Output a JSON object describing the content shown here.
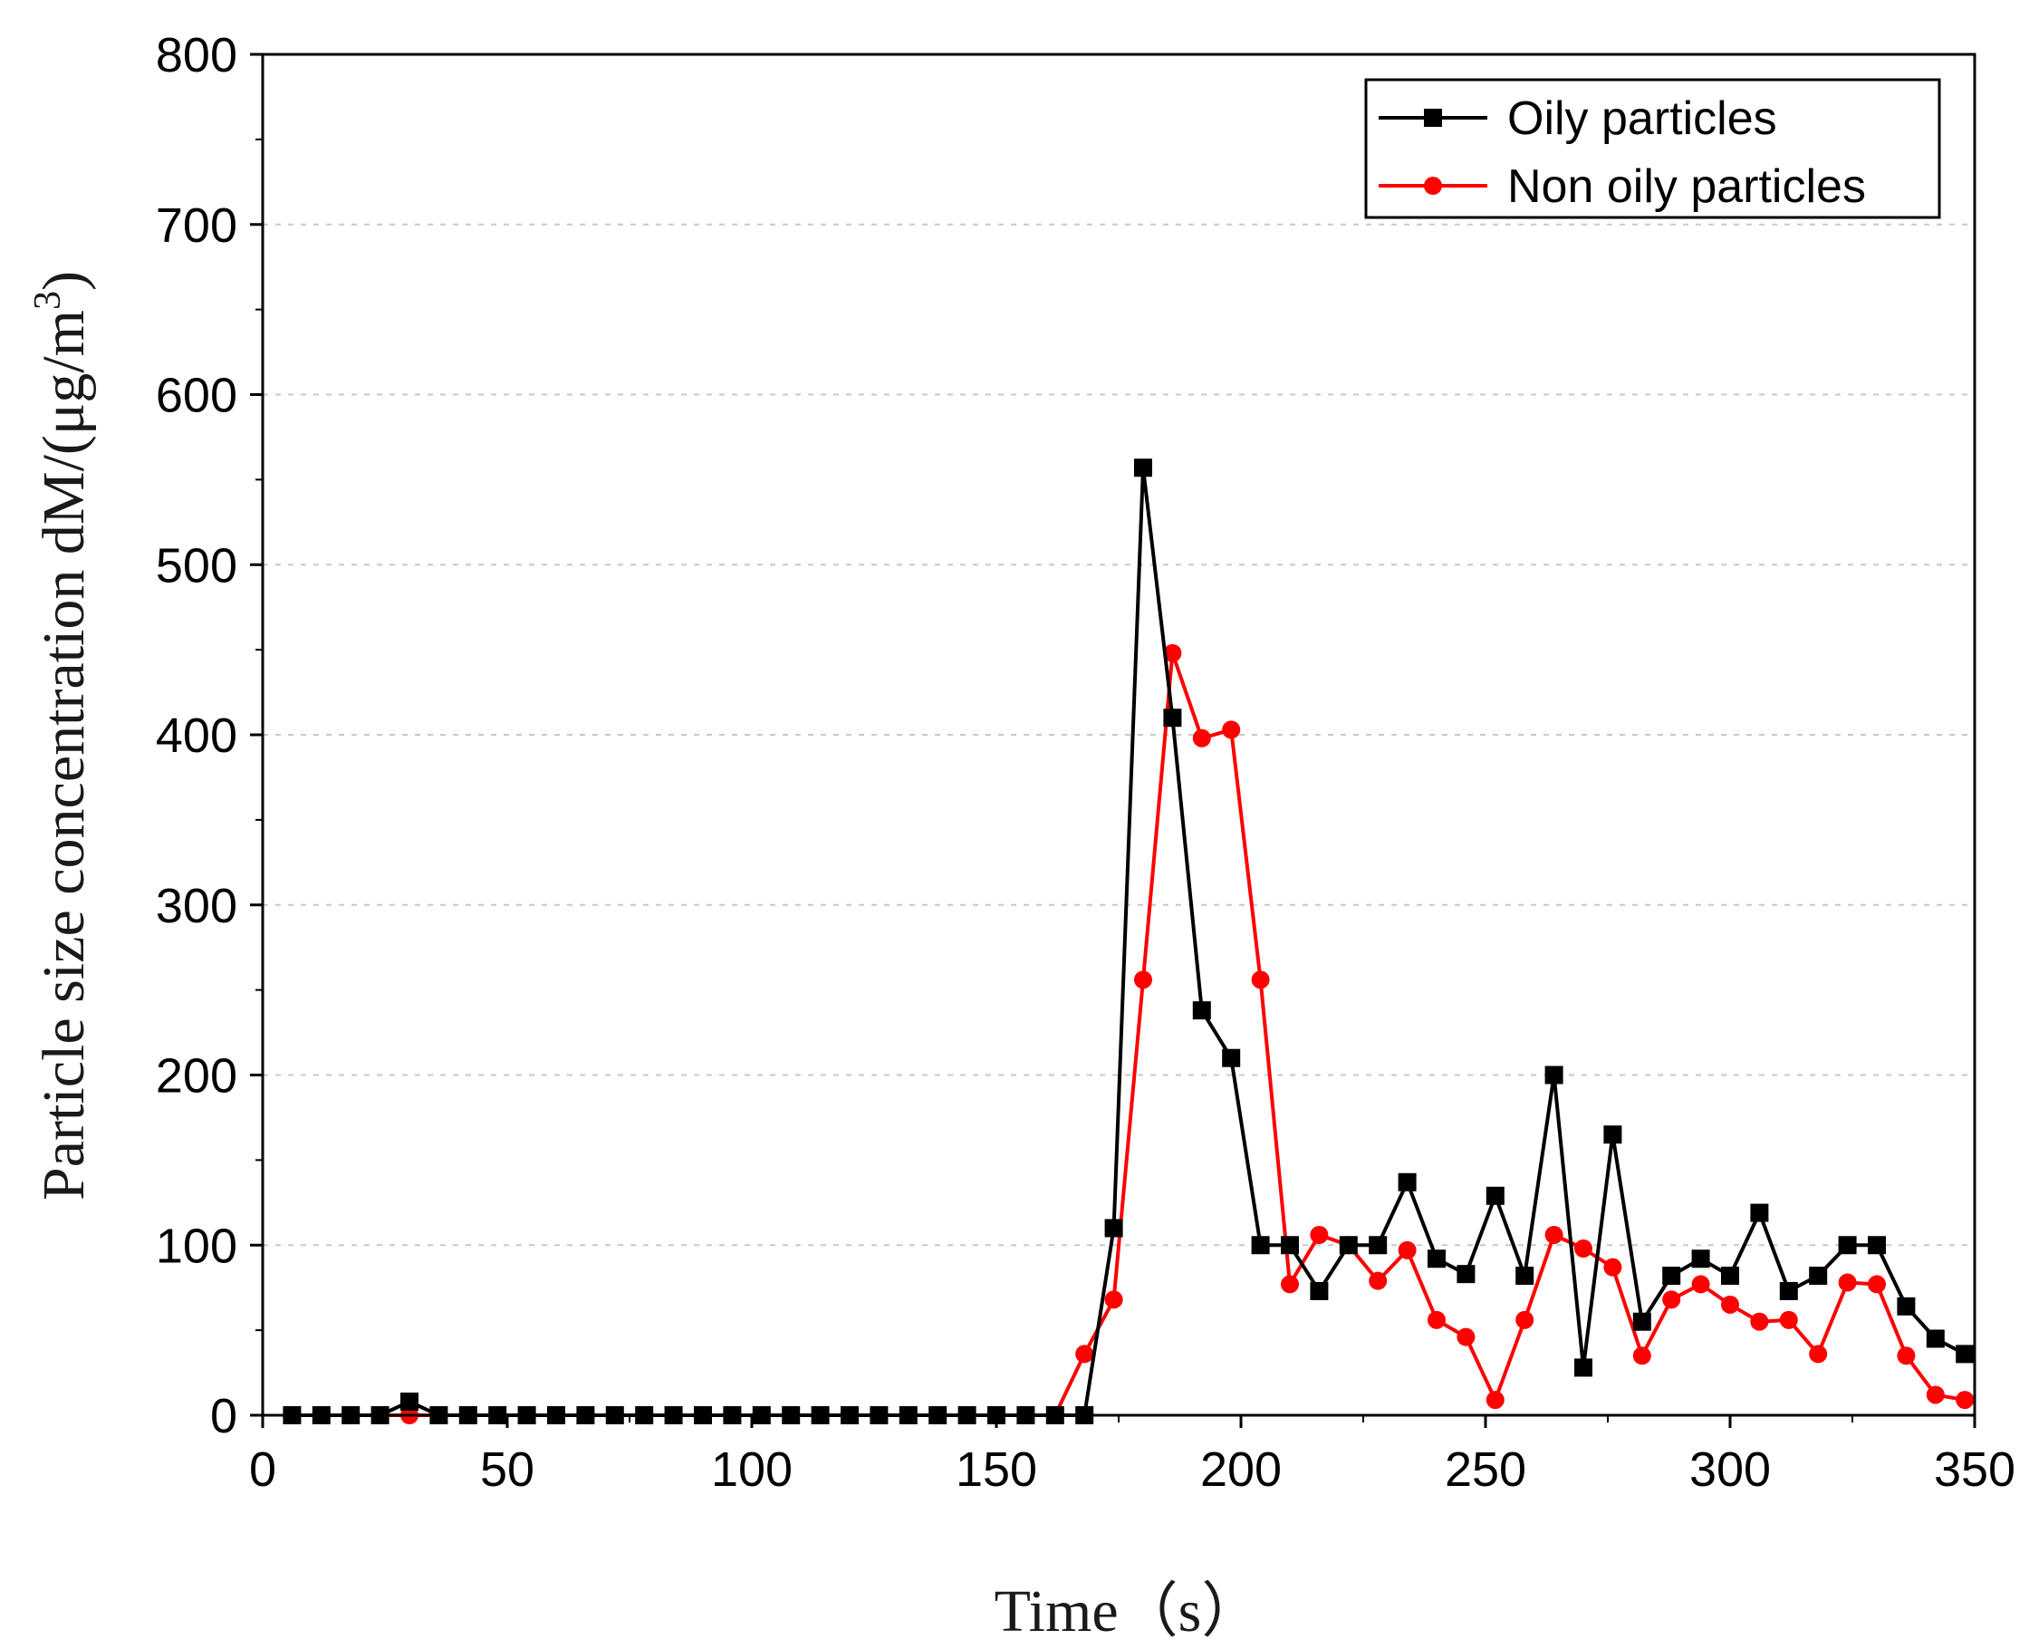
{
  "chart_data": {
    "type": "line",
    "title": "",
    "xlabel": "Time（s）",
    "ylabel": "Particle size concentration dM/(μg/m",
    "ylabel_superscript": "3",
    "ylabel_suffix": ")",
    "xlim": [
      0,
      350
    ],
    "ylim": [
      0,
      800
    ],
    "xticks": [
      0,
      50,
      100,
      150,
      200,
      250,
      300,
      350
    ],
    "yticks": [
      0,
      100,
      200,
      300,
      400,
      500,
      600,
      700,
      800
    ],
    "grid": "horizontal-dashed",
    "legend_position": "top-right",
    "x": [
      6,
      12,
      18,
      24,
      30,
      36,
      42,
      48,
      54,
      60,
      66,
      72,
      78,
      84,
      90,
      96,
      102,
      108,
      114,
      120,
      126,
      132,
      138,
      144,
      150,
      156,
      162,
      168,
      174,
      180,
      186,
      192,
      198,
      204,
      210,
      216,
      222,
      228,
      234,
      240,
      246,
      252,
      258,
      264,
      270,
      276,
      282,
      288,
      294,
      300,
      306,
      312,
      318,
      324,
      330,
      336,
      342,
      348
    ],
    "series": [
      {
        "name": "Oily particles",
        "color": "#000000",
        "marker": "square",
        "values": [
          0,
          0,
          0,
          0,
          8,
          0,
          0,
          0,
          0,
          0,
          0,
          0,
          0,
          0,
          0,
          0,
          0,
          0,
          0,
          0,
          0,
          0,
          0,
          0,
          0,
          0,
          0,
          0,
          110,
          557,
          410,
          238,
          210,
          100,
          100,
          73,
          100,
          100,
          137,
          92,
          83,
          129,
          82,
          200,
          28,
          165,
          55,
          82,
          92,
          82,
          119,
          73,
          82,
          100,
          100,
          64,
          45,
          36
        ]
      },
      {
        "name": "Non oily particles",
        "color": "#ff0000",
        "marker": "circle",
        "values": [
          0,
          0,
          0,
          0,
          0,
          0,
          0,
          0,
          0,
          0,
          0,
          0,
          0,
          0,
          0,
          0,
          0,
          0,
          0,
          0,
          0,
          0,
          0,
          0,
          0,
          0,
          0,
          36,
          68,
          256,
          448,
          398,
          403,
          256,
          77,
          106,
          100,
          79,
          97,
          56,
          46,
          9,
          56,
          106,
          98,
          87,
          35,
          68,
          77,
          65,
          55,
          56,
          36,
          78,
          77,
          35,
          12,
          9
        ]
      }
    ]
  }
}
